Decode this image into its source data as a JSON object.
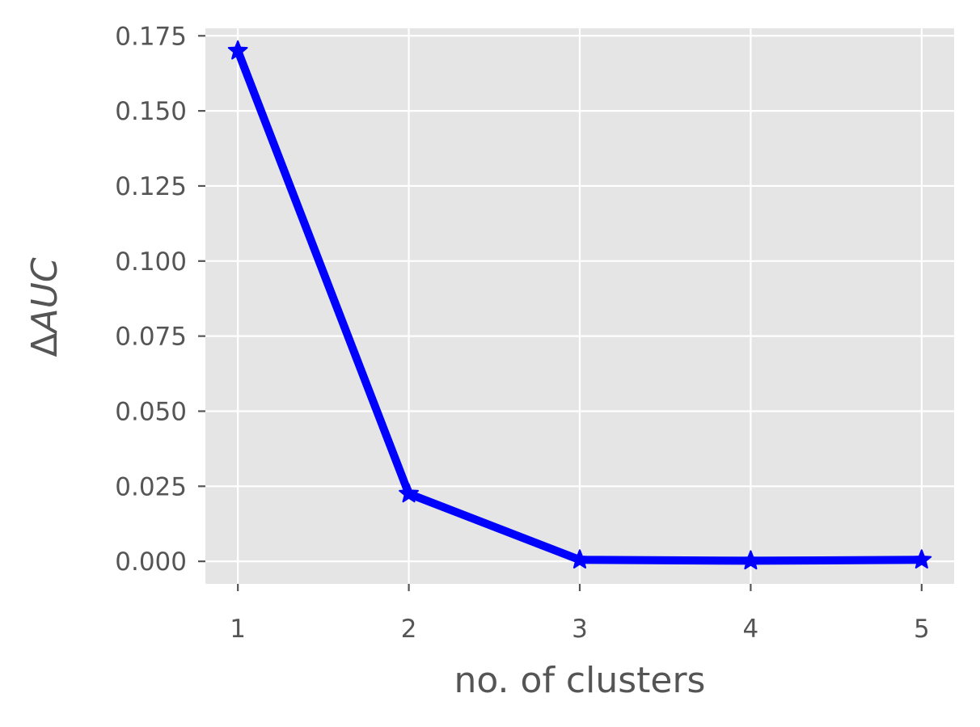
{
  "chart_data": {
    "type": "line",
    "x": [
      1,
      2,
      3,
      4,
      5
    ],
    "series": [
      {
        "values": [
          0.17,
          0.0225,
          0.0005,
          0.0002,
          0.0005
        ],
        "color": "#0000ff",
        "marker": "star"
      }
    ],
    "title": "",
    "xlabel": "no. of clusters",
    "ylabel_symbol": "Δ",
    "ylabel_text": "AUC",
    "xlim": [
      0.81,
      5.19
    ],
    "ylim": [
      -0.0075,
      0.1775
    ],
    "x_ticks": [
      1,
      2,
      3,
      4,
      5
    ],
    "x_tick_labels": [
      "1",
      "2",
      "3",
      "4",
      "5"
    ],
    "y_ticks": [
      0,
      0.025,
      0.05,
      0.075,
      0.1,
      0.125,
      0.15,
      0.175
    ],
    "y_tick_labels": [
      "0.000",
      "0.025",
      "0.050",
      "0.075",
      "0.100",
      "0.125",
      "0.150",
      "0.175"
    ],
    "grid": true,
    "style": "ggplot",
    "background_color": "#e5e5e5",
    "grid_color": "#ffffff"
  }
}
